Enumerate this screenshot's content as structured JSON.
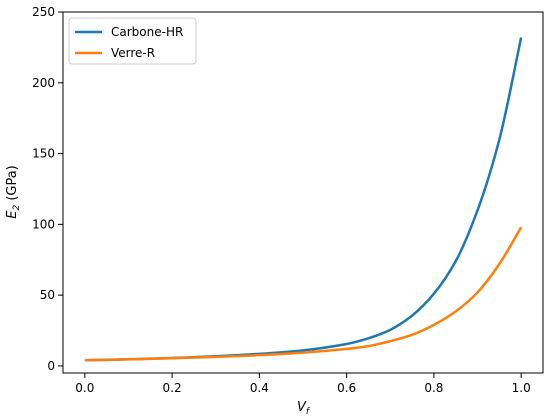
{
  "chart_data": {
    "type": "line",
    "title": "",
    "xlabel": "V",
    "xlabel_sub": "f",
    "ylabel": "E",
    "ylabel_sub": "2",
    "ylabel_unit": " (GPa)",
    "xlim": [
      -0.05,
      1.05
    ],
    "ylim": [
      -5,
      250
    ],
    "xticks": [
      0.0,
      0.2,
      0.4,
      0.6,
      0.8,
      1.0
    ],
    "xtick_labels": [
      "0.0",
      "0.2",
      "0.4",
      "0.6",
      "0.8",
      "1.0"
    ],
    "yticks": [
      0,
      50,
      100,
      150,
      200,
      250
    ],
    "ytick_labels": [
      "0",
      "50",
      "100",
      "150",
      "200",
      "250"
    ],
    "grid": false,
    "legend_position": "top-left",
    "x": [
      0.0,
      0.1,
      0.2,
      0.3,
      0.4,
      0.5,
      0.6,
      0.65,
      0.7,
      0.75,
      0.8,
      0.85,
      0.9,
      0.95,
      1.0
    ],
    "series": [
      {
        "name": "Carbone-HR",
        "color": "#1f77b4",
        "values": [
          4,
          4.7,
          5.6,
          6.8,
          8.5,
          11.0,
          15.5,
          19.5,
          25.5,
          35.5,
          51.0,
          74.0,
          110.0,
          160.0,
          232.0
        ]
      },
      {
        "name": "Verre-R",
        "color": "#ff7f0e",
        "values": [
          4,
          4.6,
          5.4,
          6.4,
          7.6,
          9.4,
          12.0,
          14.0,
          17.5,
          22.0,
          29.0,
          38.5,
          52.0,
          72.0,
          98.0
        ]
      }
    ]
  }
}
